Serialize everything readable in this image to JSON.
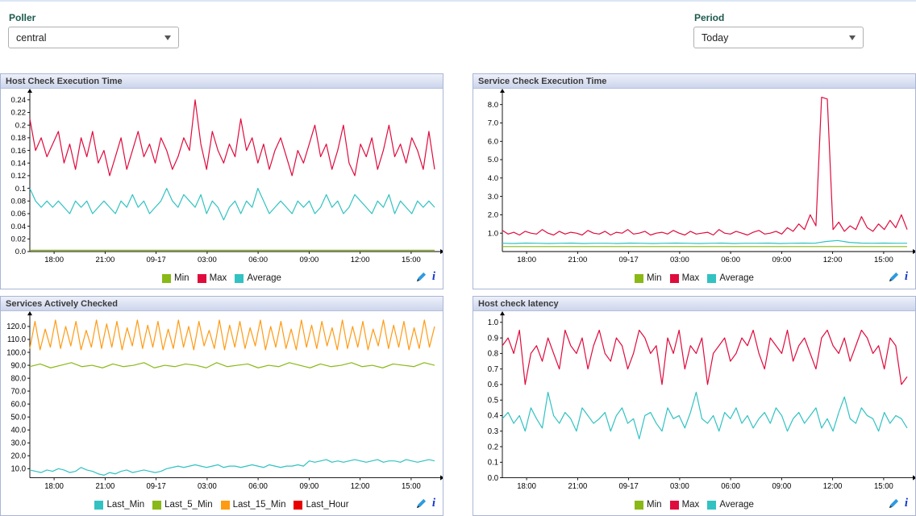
{
  "filters": {
    "poller": {
      "label": "Poller",
      "value": "central"
    },
    "period": {
      "label": "Period",
      "value": "Today"
    }
  },
  "panel_icons": {
    "edit": "pencil-icon",
    "info": "info-icon"
  },
  "chart_data": [
    {
      "type": "line",
      "title": "Host Check Execution Time",
      "xlabel": "",
      "ylabel": "",
      "legend_position": "bottom",
      "grid": false,
      "ylim": [
        0,
        0.25
      ],
      "y_ticks": [
        {
          "v": 0,
          "label": "0.0"
        },
        {
          "v": 0.02,
          "label": "0.02"
        },
        {
          "v": 0.04,
          "label": "0.04"
        },
        {
          "v": 0.06,
          "label": "0.06"
        },
        {
          "v": 0.08,
          "label": "0.08"
        },
        {
          "v": 0.1,
          "label": "0.1"
        },
        {
          "v": 0.12,
          "label": "0.12"
        },
        {
          "v": 0.14,
          "label": "0.14"
        },
        {
          "v": 0.16,
          "label": "0.16"
        },
        {
          "v": 0.18,
          "label": "0.18"
        },
        {
          "v": 0.2,
          "label": "0.2"
        },
        {
          "v": 0.22,
          "label": "0.22"
        },
        {
          "v": 0.24,
          "label": "0.24"
        }
      ],
      "x_ticks": [
        "18:00",
        "21:00",
        "09-17",
        "03:00",
        "06:00",
        "09:00",
        "12:00",
        "15:00"
      ],
      "series": [
        {
          "name": "Min",
          "color": "#88b917",
          "values": [
            0.002,
            0.002
          ]
        },
        {
          "name": "Max",
          "color": "#e00b3d",
          "values": [
            0.21,
            0.16,
            0.18,
            0.15,
            0.17,
            0.19,
            0.14,
            0.17,
            0.13,
            0.18,
            0.15,
            0.19,
            0.14,
            0.16,
            0.12,
            0.15,
            0.18,
            0.13,
            0.16,
            0.19,
            0.15,
            0.17,
            0.14,
            0.18,
            0.16,
            0.13,
            0.15,
            0.18,
            0.16,
            0.24,
            0.17,
            0.13,
            0.19,
            0.16,
            0.14,
            0.17,
            0.15,
            0.21,
            0.16,
            0.18,
            0.14,
            0.17,
            0.13,
            0.16,
            0.18,
            0.15,
            0.12,
            0.16,
            0.14,
            0.17,
            0.2,
            0.15,
            0.17,
            0.13,
            0.16,
            0.2,
            0.14,
            0.12,
            0.17,
            0.15,
            0.18,
            0.13,
            0.16,
            0.2,
            0.15,
            0.17,
            0.14,
            0.18,
            0.16,
            0.13,
            0.19,
            0.13
          ]
        },
        {
          "name": "Average",
          "color": "#32c2c2",
          "values": [
            0.1,
            0.08,
            0.07,
            0.08,
            0.07,
            0.08,
            0.07,
            0.06,
            0.08,
            0.07,
            0.08,
            0.06,
            0.07,
            0.08,
            0.07,
            0.06,
            0.08,
            0.07,
            0.09,
            0.07,
            0.08,
            0.06,
            0.07,
            0.08,
            0.1,
            0.08,
            0.07,
            0.09,
            0.08,
            0.07,
            0.09,
            0.06,
            0.08,
            0.07,
            0.05,
            0.07,
            0.08,
            0.06,
            0.08,
            0.07,
            0.1,
            0.08,
            0.06,
            0.07,
            0.08,
            0.07,
            0.06,
            0.08,
            0.07,
            0.08,
            0.06,
            0.07,
            0.09,
            0.07,
            0.08,
            0.06,
            0.07,
            0.09,
            0.08,
            0.07,
            0.06,
            0.08,
            0.07,
            0.09,
            0.06,
            0.08,
            0.07,
            0.06,
            0.08,
            0.07,
            0.08,
            0.07
          ]
        }
      ]
    },
    {
      "type": "line",
      "title": "Service Check Execution Time",
      "xlabel": "",
      "ylabel": "",
      "legend_position": "bottom",
      "grid": false,
      "ylim": [
        0,
        8.6
      ],
      "y_ticks": [
        {
          "v": 1,
          "label": "1.0"
        },
        {
          "v": 2,
          "label": "2.0"
        },
        {
          "v": 3,
          "label": "3.0"
        },
        {
          "v": 4,
          "label": "4.0"
        },
        {
          "v": 5,
          "label": "5.0"
        },
        {
          "v": 6,
          "label": "6.0"
        },
        {
          "v": 7,
          "label": "7.0"
        },
        {
          "v": 8,
          "label": "8.0"
        }
      ],
      "x_ticks": [
        "18:00",
        "21:00",
        "09-17",
        "03:00",
        "06:00",
        "09:00",
        "12:00",
        "15:00"
      ],
      "series": [
        {
          "name": "Min",
          "color": "#88b917",
          "values": [
            0.27,
            0.27
          ]
        },
        {
          "name": "Max",
          "color": "#e00b3d",
          "values": [
            1.15,
            0.95,
            1.05,
            0.9,
            1.1,
            1.0,
            0.95,
            1.2,
            1.0,
            0.9,
            1.1,
            0.95,
            1.05,
            1.0,
            0.9,
            1.15,
            1.0,
            0.95,
            1.1,
            0.9,
            1.05,
            1.0,
            1.2,
            0.95,
            1.0,
            1.1,
            0.9,
            1.0,
            1.05,
            0.95,
            1.15,
            1.0,
            0.9,
            1.1,
            0.95,
            1.0,
            1.05,
            0.9,
            1.2,
            1.0,
            0.95,
            1.1,
            1.0,
            0.9,
            1.05,
            1.15,
            0.95,
            1.0,
            1.1,
            0.95,
            1.3,
            1.1,
            1.5,
            1.2,
            2.0,
            1.4,
            8.4,
            8.3,
            1.2,
            1.6,
            1.1,
            1.4,
            1.2,
            1.9,
            1.3,
            1.1,
            1.5,
            1.2,
            1.7,
            1.3,
            2.0,
            1.2
          ]
        },
        {
          "name": "Average",
          "color": "#32c2c2",
          "values": [
            0.45,
            0.44,
            0.46,
            0.45,
            0.44,
            0.45,
            0.46,
            0.44,
            0.45,
            0.45,
            0.44,
            0.46,
            0.45,
            0.44,
            0.45,
            0.46,
            0.45,
            0.44,
            0.45,
            0.46,
            0.44,
            0.45,
            0.45,
            0.46,
            0.44,
            0.45,
            0.46,
            0.45,
            0.55,
            0.6,
            0.5,
            0.46,
            0.45,
            0.46,
            0.45,
            0.45
          ]
        }
      ]
    },
    {
      "type": "line",
      "title": "Services Actively Checked",
      "xlabel": "",
      "ylabel": "",
      "legend_position": "bottom",
      "grid": false,
      "ylim": [
        3,
        128
      ],
      "y_ticks": [
        {
          "v": 10,
          "label": "10.0"
        },
        {
          "v": 20,
          "label": "20.0"
        },
        {
          "v": 30,
          "label": "30.0"
        },
        {
          "v": 40,
          "label": "40.0"
        },
        {
          "v": 50,
          "label": "50.0"
        },
        {
          "v": 60,
          "label": "60.0"
        },
        {
          "v": 70,
          "label": "70.0"
        },
        {
          "v": 80,
          "label": "80.0"
        },
        {
          "v": 90,
          "label": "90.0"
        },
        {
          "v": 100,
          "label": "100.0"
        },
        {
          "v": 110,
          "label": "110.0"
        },
        {
          "v": 120,
          "label": "120.0"
        }
      ],
      "x_ticks": [
        "18:00",
        "21:00",
        "09-17",
        "03:00",
        "06:00",
        "09:00",
        "12:00",
        "15:00"
      ],
      "series": [
        {
          "name": "Last_Min",
          "color": "#32c2c2",
          "values": [
            9,
            8,
            7,
            9,
            8,
            10,
            9,
            7,
            8,
            11,
            9,
            8,
            6,
            5,
            7,
            6,
            8,
            9,
            7,
            8,
            9,
            8,
            7,
            8,
            10,
            11,
            12,
            11,
            12,
            13,
            12,
            11,
            12,
            13,
            11,
            12,
            12,
            11,
            12,
            13,
            12,
            11,
            13,
            12,
            11,
            12,
            12,
            13,
            12,
            16,
            15,
            16,
            17,
            15,
            16,
            15,
            16,
            17,
            16,
            15,
            16,
            17,
            15,
            16,
            16,
            15,
            17,
            16,
            15,
            16,
            17,
            16
          ]
        },
        {
          "name": "Last_5_Min",
          "color": "#88b917",
          "values": [
            89,
            91,
            88,
            90,
            92,
            89,
            90,
            88,
            91,
            89,
            90,
            92,
            88,
            90,
            89,
            91,
            90,
            88,
            92,
            89,
            90,
            91,
            88,
            90,
            89,
            92,
            90,
            88,
            91,
            89,
            90,
            92,
            89,
            90,
            88,
            91,
            90,
            89,
            92,
            90
          ]
        },
        {
          "name": "Last_15_Min",
          "color": "#ff9a13",
          "values": [
            103,
            124,
            102,
            118,
            104,
            125,
            103,
            120,
            105,
            124,
            102,
            117,
            104,
            125,
            103,
            122,
            104,
            124,
            102,
            119,
            105,
            125,
            103,
            121,
            104,
            124,
            102,
            118,
            103,
            125,
            104,
            120,
            102,
            124,
            105,
            117,
            103,
            125,
            102,
            121,
            104,
            124,
            103,
            119,
            105,
            125,
            102,
            120,
            104,
            124,
            103,
            118,
            102,
            125,
            104,
            121,
            103,
            124,
            105,
            119,
            102,
            125,
            103,
            120,
            104,
            124,
            102,
            118,
            105,
            125,
            103,
            121,
            104,
            124,
            102,
            119,
            103,
            125,
            104,
            120
          ]
        },
        {
          "name": "Last_Hour",
          "color": "#e80000",
          "values": []
        }
      ]
    },
    {
      "type": "line",
      "title": "Host check latency",
      "xlabel": "",
      "ylabel": "",
      "legend_position": "bottom",
      "grid": false,
      "ylim": [
        0,
        1.04
      ],
      "y_ticks": [
        {
          "v": 0,
          "label": "0.0"
        },
        {
          "v": 0.1,
          "label": "0.1"
        },
        {
          "v": 0.2,
          "label": "0.2"
        },
        {
          "v": 0.3,
          "label": "0.3"
        },
        {
          "v": 0.4,
          "label": "0.4"
        },
        {
          "v": 0.5,
          "label": "0.5"
        },
        {
          "v": 0.6,
          "label": "0.6"
        },
        {
          "v": 0.7,
          "label": "0.7"
        },
        {
          "v": 0.8,
          "label": "0.8"
        },
        {
          "v": 0.9,
          "label": "0.9"
        },
        {
          "v": 1,
          "label": "1.0"
        }
      ],
      "x_ticks": [
        "18:00",
        "21:00",
        "09-17",
        "03:00",
        "06:00",
        "09:00",
        "12:00",
        "15:00"
      ],
      "series": [
        {
          "name": "Min",
          "color": "#88b917",
          "values": []
        },
        {
          "name": "Max",
          "color": "#e00b3d",
          "values": [
            0.85,
            0.9,
            0.8,
            0.95,
            0.6,
            0.8,
            0.85,
            0.75,
            0.9,
            0.8,
            0.7,
            0.95,
            0.85,
            0.8,
            0.9,
            0.7,
            0.85,
            0.95,
            0.8,
            0.75,
            0.9,
            0.85,
            0.7,
            0.8,
            0.95,
            0.9,
            0.8,
            0.85,
            0.6,
            0.9,
            0.8,
            0.95,
            0.7,
            0.85,
            0.8,
            0.9,
            0.6,
            0.8,
            0.85,
            0.9,
            0.75,
            0.8,
            0.9,
            0.85,
            0.95,
            0.8,
            0.7,
            0.9,
            0.85,
            0.8,
            0.95,
            0.75,
            0.85,
            0.9,
            0.8,
            0.7,
            0.9,
            0.95,
            0.85,
            0.8,
            0.9,
            0.75,
            0.85,
            0.95,
            0.9,
            0.8,
            0.85,
            0.7,
            0.9,
            0.85,
            0.6,
            0.65
          ]
        },
        {
          "name": "Average",
          "color": "#32c2c2",
          "values": [
            0.38,
            0.42,
            0.35,
            0.4,
            0.3,
            0.45,
            0.38,
            0.32,
            0.55,
            0.4,
            0.35,
            0.42,
            0.38,
            0.3,
            0.45,
            0.4,
            0.35,
            0.38,
            0.42,
            0.3,
            0.4,
            0.45,
            0.35,
            0.38,
            0.25,
            0.4,
            0.42,
            0.35,
            0.3,
            0.45,
            0.38,
            0.4,
            0.32,
            0.42,
            0.55,
            0.38,
            0.35,
            0.4,
            0.3,
            0.42,
            0.38,
            0.45,
            0.35,
            0.4,
            0.32,
            0.38,
            0.42,
            0.35,
            0.45,
            0.4,
            0.3,
            0.38,
            0.42,
            0.35,
            0.4,
            0.45,
            0.32,
            0.38,
            0.3,
            0.42,
            0.52,
            0.38,
            0.35,
            0.45,
            0.4,
            0.38,
            0.3,
            0.42,
            0.35,
            0.4,
            0.38,
            0.32
          ]
        }
      ]
    }
  ]
}
